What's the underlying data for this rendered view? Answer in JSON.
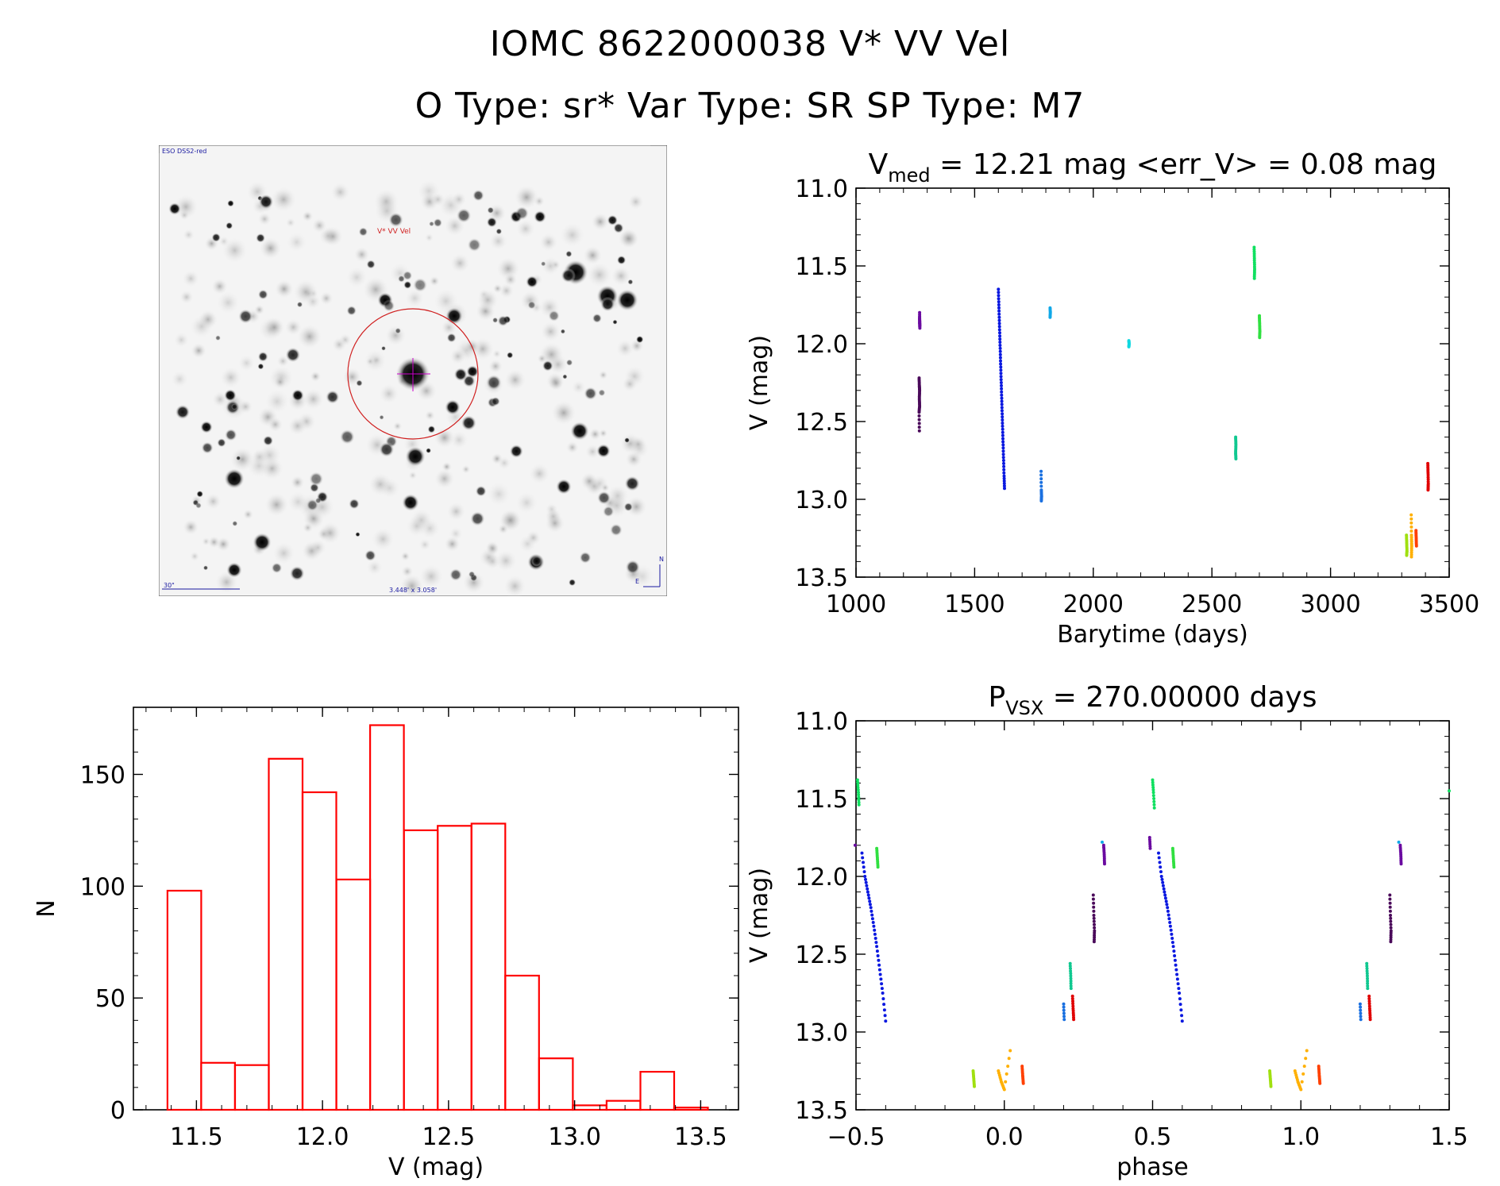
{
  "header": {
    "line1": "IOMC 8622000038    V* VV Vel",
    "line2": "O Type: sr*  Var Type: SR  SP Type: M7"
  },
  "image_panel": {
    "survey_label": "ESO DSS2-red",
    "target_label": "V* VV Vel",
    "scale_label": "30\"",
    "size_label": "3.448' x 3.058'",
    "north_label": "N",
    "east_label": "E"
  },
  "colors": {
    "hist": "#ff0000",
    "target": "#d02020",
    "marker": "#cc00cc",
    "overlay_text": "#1a1aa0"
  },
  "chart_data": [
    {
      "id": "lightcurve",
      "type": "scatter",
      "title_main": "V",
      "title_sub": "med",
      "title_rest": " = 12.21 mag <err_V> = 0.08 mag",
      "xlabel": "Barytime (days)",
      "ylabel": "V (mag)",
      "xlim": [
        1000,
        3500
      ],
      "ylim": [
        11.0,
        13.5
      ],
      "y_inverted": true,
      "xticks": [
        1000,
        1500,
        2000,
        2500,
        3000,
        3500
      ],
      "xtick_labels": [
        "1000",
        "1500",
        "2000",
        "2500",
        "3000",
        "3500"
      ],
      "yticks": [
        11.0,
        11.5,
        12.0,
        12.5,
        13.0,
        13.5
      ],
      "ytick_labels": [
        "11.0",
        "11.5",
        "12.0",
        "12.5",
        "13.0",
        "13.5"
      ],
      "series": [
        {
          "name": "season-1a",
          "color": "#6a0aa0",
          "points": [
            [
              1268,
              11.8
            ],
            [
              1268,
              11.86
            ],
            [
              1269,
              11.9
            ],
            [
              1268,
              11.83
            ],
            [
              1269,
              11.88
            ]
          ]
        },
        {
          "name": "season-1b",
          "color": "#4a0a5a",
          "points": [
            [
              1266,
              12.22
            ],
            [
              1267,
              12.27
            ],
            [
              1268,
              12.3
            ],
            [
              1267,
              12.35
            ],
            [
              1268,
              12.4
            ],
            [
              1266,
              12.44
            ],
            [
              1267,
              12.56
            ]
          ]
        },
        {
          "name": "season-2",
          "color": "#0a18e0",
          "points": [
            [
              1600,
              11.65
            ],
            [
              1602,
              11.75
            ],
            [
              1604,
              11.85
            ],
            [
              1606,
              11.95
            ],
            [
              1608,
              12.05
            ],
            [
              1610,
              12.15
            ],
            [
              1612,
              12.25
            ],
            [
              1614,
              12.35
            ],
            [
              1616,
              12.45
            ],
            [
              1618,
              12.55
            ],
            [
              1620,
              12.65
            ],
            [
              1622,
              12.75
            ],
            [
              1624,
              12.85
            ],
            [
              1626,
              12.93
            ]
          ]
        },
        {
          "name": "season-3",
          "color": "#1a70e0",
          "points": [
            [
              1780,
              12.82
            ],
            [
              1781,
              12.94
            ],
            [
              1782,
              12.98
            ],
            [
              1781,
              13.01
            ]
          ]
        },
        {
          "name": "season-4",
          "color": "#10a8e8",
          "points": [
            [
              1818,
              11.77
            ],
            [
              1819,
              11.8
            ],
            [
              1818,
              11.83
            ]
          ]
        },
        {
          "name": "season-5",
          "color": "#10d8e0",
          "points": [
            [
              2150,
              11.98
            ],
            [
              2151,
              12.0
            ],
            [
              2150,
              12.02
            ]
          ]
        },
        {
          "name": "season-6",
          "color": "#10c890",
          "points": [
            [
              2600,
              12.6
            ],
            [
              2601,
              12.65
            ],
            [
              2600,
              12.7
            ],
            [
              2601,
              12.74
            ]
          ]
        },
        {
          "name": "season-7a",
          "color": "#10e060",
          "points": [
            [
              2678,
              11.38
            ],
            [
              2679,
              11.45
            ],
            [
              2680,
              11.52
            ],
            [
              2679,
              11.58
            ]
          ]
        },
        {
          "name": "season-7b",
          "color": "#30e040",
          "points": [
            [
              2700,
              11.82
            ],
            [
              2701,
              11.87
            ],
            [
              2702,
              11.92
            ],
            [
              2701,
              11.96
            ]
          ]
        },
        {
          "name": "season-8a",
          "color": "#a0e010",
          "points": [
            [
              3320,
              13.23
            ],
            [
              3321,
              13.28
            ],
            [
              3322,
              13.33
            ],
            [
              3321,
              13.36
            ]
          ]
        },
        {
          "name": "season-8b",
          "color": "#ffb000",
          "points": [
            [
              3340,
              13.1
            ],
            [
              3341,
              13.23
            ],
            [
              3342,
              13.3
            ],
            [
              3341,
              13.37
            ]
          ]
        },
        {
          "name": "season-8c",
          "color": "#ff4000",
          "points": [
            [
              3360,
              13.2
            ],
            [
              3361,
              13.25
            ],
            [
              3362,
              13.3
            ]
          ]
        },
        {
          "name": "season-9",
          "color": "#e00000",
          "points": [
            [
              3410,
              12.77
            ],
            [
              3411,
              12.83
            ],
            [
              3412,
              12.9
            ],
            [
              3411,
              12.94
            ]
          ]
        }
      ]
    },
    {
      "id": "histogram",
      "type": "bar",
      "xlabel": "V (mag)",
      "ylabel": "N",
      "xlim": [
        11.25,
        13.65
      ],
      "ylim": [
        0,
        180
      ],
      "xticks": [
        11.5,
        12.0,
        12.5,
        13.0,
        13.5
      ],
      "xtick_labels": [
        "11.5",
        "12.0",
        "12.5",
        "13.0",
        "13.5"
      ],
      "yticks": [
        0,
        50,
        100,
        150
      ],
      "ytick_labels": [
        "0",
        "50",
        "100",
        "150"
      ],
      "bin_start": 11.385,
      "bin_width": 0.134,
      "values": [
        98,
        21,
        20,
        157,
        142,
        103,
        172,
        125,
        127,
        128,
        60,
        23,
        2,
        4,
        17,
        1
      ]
    },
    {
      "id": "phased",
      "type": "scatter",
      "title_main": "P",
      "title_sub": "VSX",
      "title_rest": " = 270.00000 days",
      "xlabel": "phase",
      "ylabel": "V (mag)",
      "xlim": [
        -0.5,
        1.5
      ],
      "ylim": [
        11.0,
        13.5
      ],
      "y_inverted": true,
      "xticks": [
        -0.5,
        0.0,
        0.5,
        1.0,
        1.5
      ],
      "xtick_labels": [
        "−0.5",
        "0.0",
        "0.5",
        "1.0",
        "1.5"
      ],
      "yticks": [
        11.0,
        11.5,
        12.0,
        12.5,
        13.0,
        13.5
      ],
      "ytick_labels": [
        "11.0",
        "11.5",
        "12.0",
        "12.5",
        "13.0",
        "13.5"
      ],
      "series": [
        {
          "name": "green-a",
          "color": "#10e060",
          "points": [
            [
              -0.495,
              11.38
            ],
            [
              -0.492,
              11.46
            ],
            [
              -0.49,
              11.54
            ],
            [
              0.5,
              11.38
            ],
            [
              0.503,
              11.46
            ],
            [
              0.506,
              11.56
            ],
            [
              1.5,
              11.45
            ]
          ]
        },
        {
          "name": "green-b",
          "color": "#30e040",
          "points": [
            [
              -0.43,
              11.82
            ],
            [
              -0.428,
              11.88
            ],
            [
              -0.426,
              11.94
            ],
            [
              0.568,
              11.82
            ],
            [
              0.57,
              11.88
            ],
            [
              0.572,
              11.94
            ]
          ]
        },
        {
          "name": "blue",
          "color": "#0a18e0",
          "points": [
            [
              -0.48,
              11.85
            ],
            [
              -0.47,
              12.0
            ],
            [
              -0.46,
              12.1
            ],
            [
              -0.45,
              12.2
            ],
            [
              -0.44,
              12.32
            ],
            [
              -0.43,
              12.45
            ],
            [
              -0.42,
              12.6
            ],
            [
              -0.41,
              12.75
            ],
            [
              -0.4,
              12.93
            ],
            [
              0.52,
              11.85
            ],
            [
              0.53,
              12.0
            ],
            [
              0.54,
              12.1
            ],
            [
              0.55,
              12.2
            ],
            [
              0.56,
              12.32
            ],
            [
              0.57,
              12.45
            ],
            [
              0.58,
              12.6
            ],
            [
              0.59,
              12.75
            ],
            [
              0.6,
              12.93
            ]
          ]
        },
        {
          "name": "violet",
          "color": "#6a0aa0",
          "points": [
            [
              0.335,
              11.8
            ],
            [
              0.337,
              11.86
            ],
            [
              0.338,
              11.92
            ],
            [
              1.335,
              11.8
            ],
            [
              1.337,
              11.86
            ],
            [
              1.338,
              11.92
            ],
            [
              -0.503,
              11.8
            ],
            [
              0.49,
              11.75
            ],
            [
              0.492,
              11.82
            ]
          ]
        },
        {
          "name": "dark-violet",
          "color": "#4a0a5a",
          "points": [
            [
              0.3,
              12.12
            ],
            [
              0.302,
              12.25
            ],
            [
              0.304,
              12.35
            ],
            [
              0.303,
              12.42
            ],
            [
              1.3,
              12.12
            ],
            [
              1.302,
              12.25
            ],
            [
              1.304,
              12.35
            ],
            [
              1.303,
              12.42
            ]
          ]
        },
        {
          "name": "cyan",
          "color": "#10a8e8",
          "points": [
            [
              0.33,
              11.78
            ],
            [
              1.33,
              11.78
            ]
          ]
        },
        {
          "name": "sky",
          "color": "#1a70e0",
          "points": [
            [
              0.2,
              12.82
            ],
            [
              0.202,
              12.92
            ],
            [
              1.2,
              12.82
            ],
            [
              1.202,
              12.92
            ]
          ]
        },
        {
          "name": "teal",
          "color": "#10c890",
          "points": [
            [
              0.222,
              12.56
            ],
            [
              0.224,
              12.64
            ],
            [
              0.225,
              12.72
            ],
            [
              1.222,
              12.56
            ],
            [
              1.224,
              12.64
            ],
            [
              1.225,
              12.72
            ]
          ]
        },
        {
          "name": "red",
          "color": "#e00000",
          "points": [
            [
              0.23,
              12.77
            ],
            [
              0.232,
              12.85
            ],
            [
              0.234,
              12.92
            ],
            [
              1.23,
              12.77
            ],
            [
              1.232,
              12.85
            ],
            [
              1.234,
              12.92
            ]
          ]
        },
        {
          "name": "yellow-green",
          "color": "#a0e010",
          "points": [
            [
              -0.105,
              13.25
            ],
            [
              -0.103,
              13.3
            ],
            [
              -0.101,
              13.35
            ],
            [
              0.895,
              13.25
            ],
            [
              0.897,
              13.3
            ],
            [
              0.899,
              13.35
            ]
          ]
        },
        {
          "name": "orange",
          "color": "#ffb000",
          "points": [
            [
              -0.02,
              13.25
            ],
            [
              -0.01,
              13.32
            ],
            [
              0.0,
              13.37
            ],
            [
              0.02,
              13.12
            ],
            [
              0.98,
              13.25
            ],
            [
              0.99,
              13.32
            ],
            [
              1.0,
              13.37
            ],
            [
              1.02,
              13.12
            ]
          ]
        },
        {
          "name": "orange-red",
          "color": "#ff4000",
          "points": [
            [
              0.06,
              13.22
            ],
            [
              0.062,
              13.28
            ],
            [
              0.064,
              13.33
            ],
            [
              1.06,
              13.22
            ],
            [
              1.062,
              13.28
            ],
            [
              1.064,
              13.33
            ]
          ]
        }
      ]
    }
  ]
}
